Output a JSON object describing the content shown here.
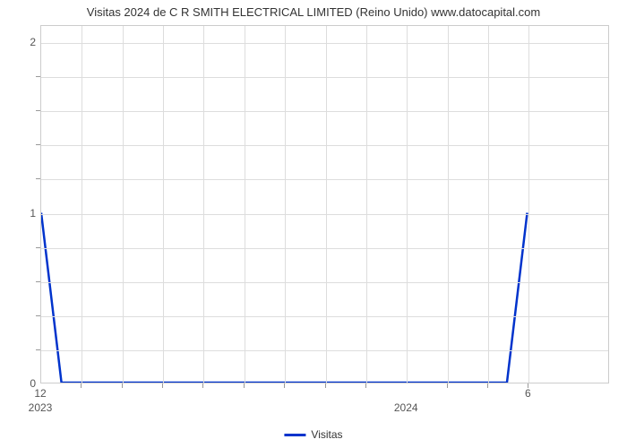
{
  "chart": {
    "type": "line",
    "title": "Visitas 2024 de C R SMITH ELECTRICAL LIMITED (Reino Unido) www.datocapital.com",
    "title_fontsize": 13,
    "title_color": "#333333",
    "background_color": "#ffffff",
    "plot_border_color": "#cccccc",
    "grid_color": "#dddddd",
    "line_color": "#0033cc",
    "line_width": 2.5,
    "y_axis": {
      "min": 0,
      "max": 2.1,
      "major_ticks": [
        0,
        1,
        2
      ],
      "minor_tick_count_between": 4,
      "label_fontsize": 12,
      "label_color": "#555555"
    },
    "x_axis": {
      "months_total": 7,
      "major_labels": [
        {
          "pos": 0,
          "text": "12"
        },
        {
          "pos": 6,
          "text": "6"
        }
      ],
      "year_labels": [
        {
          "pos": 0,
          "text": "2023"
        },
        {
          "pos": 4.5,
          "text": "2024"
        }
      ],
      "grid_positions": [
        0.5,
        1,
        1.5,
        2,
        2.5,
        3,
        3.5,
        4,
        4.5,
        5,
        5.5,
        6
      ],
      "minor_tick_positions": [
        0.5,
        1,
        1.5,
        2,
        2.5,
        3,
        3.5,
        4,
        5,
        5.5,
        6
      ],
      "label_fontsize": 12,
      "label_color": "#555555"
    },
    "data": {
      "x": [
        0,
        0.25,
        5.75,
        6
      ],
      "y": [
        1,
        0,
        0,
        1
      ]
    },
    "legend": {
      "label": "Visitas",
      "swatch_color": "#0033cc",
      "fontsize": 12
    }
  }
}
